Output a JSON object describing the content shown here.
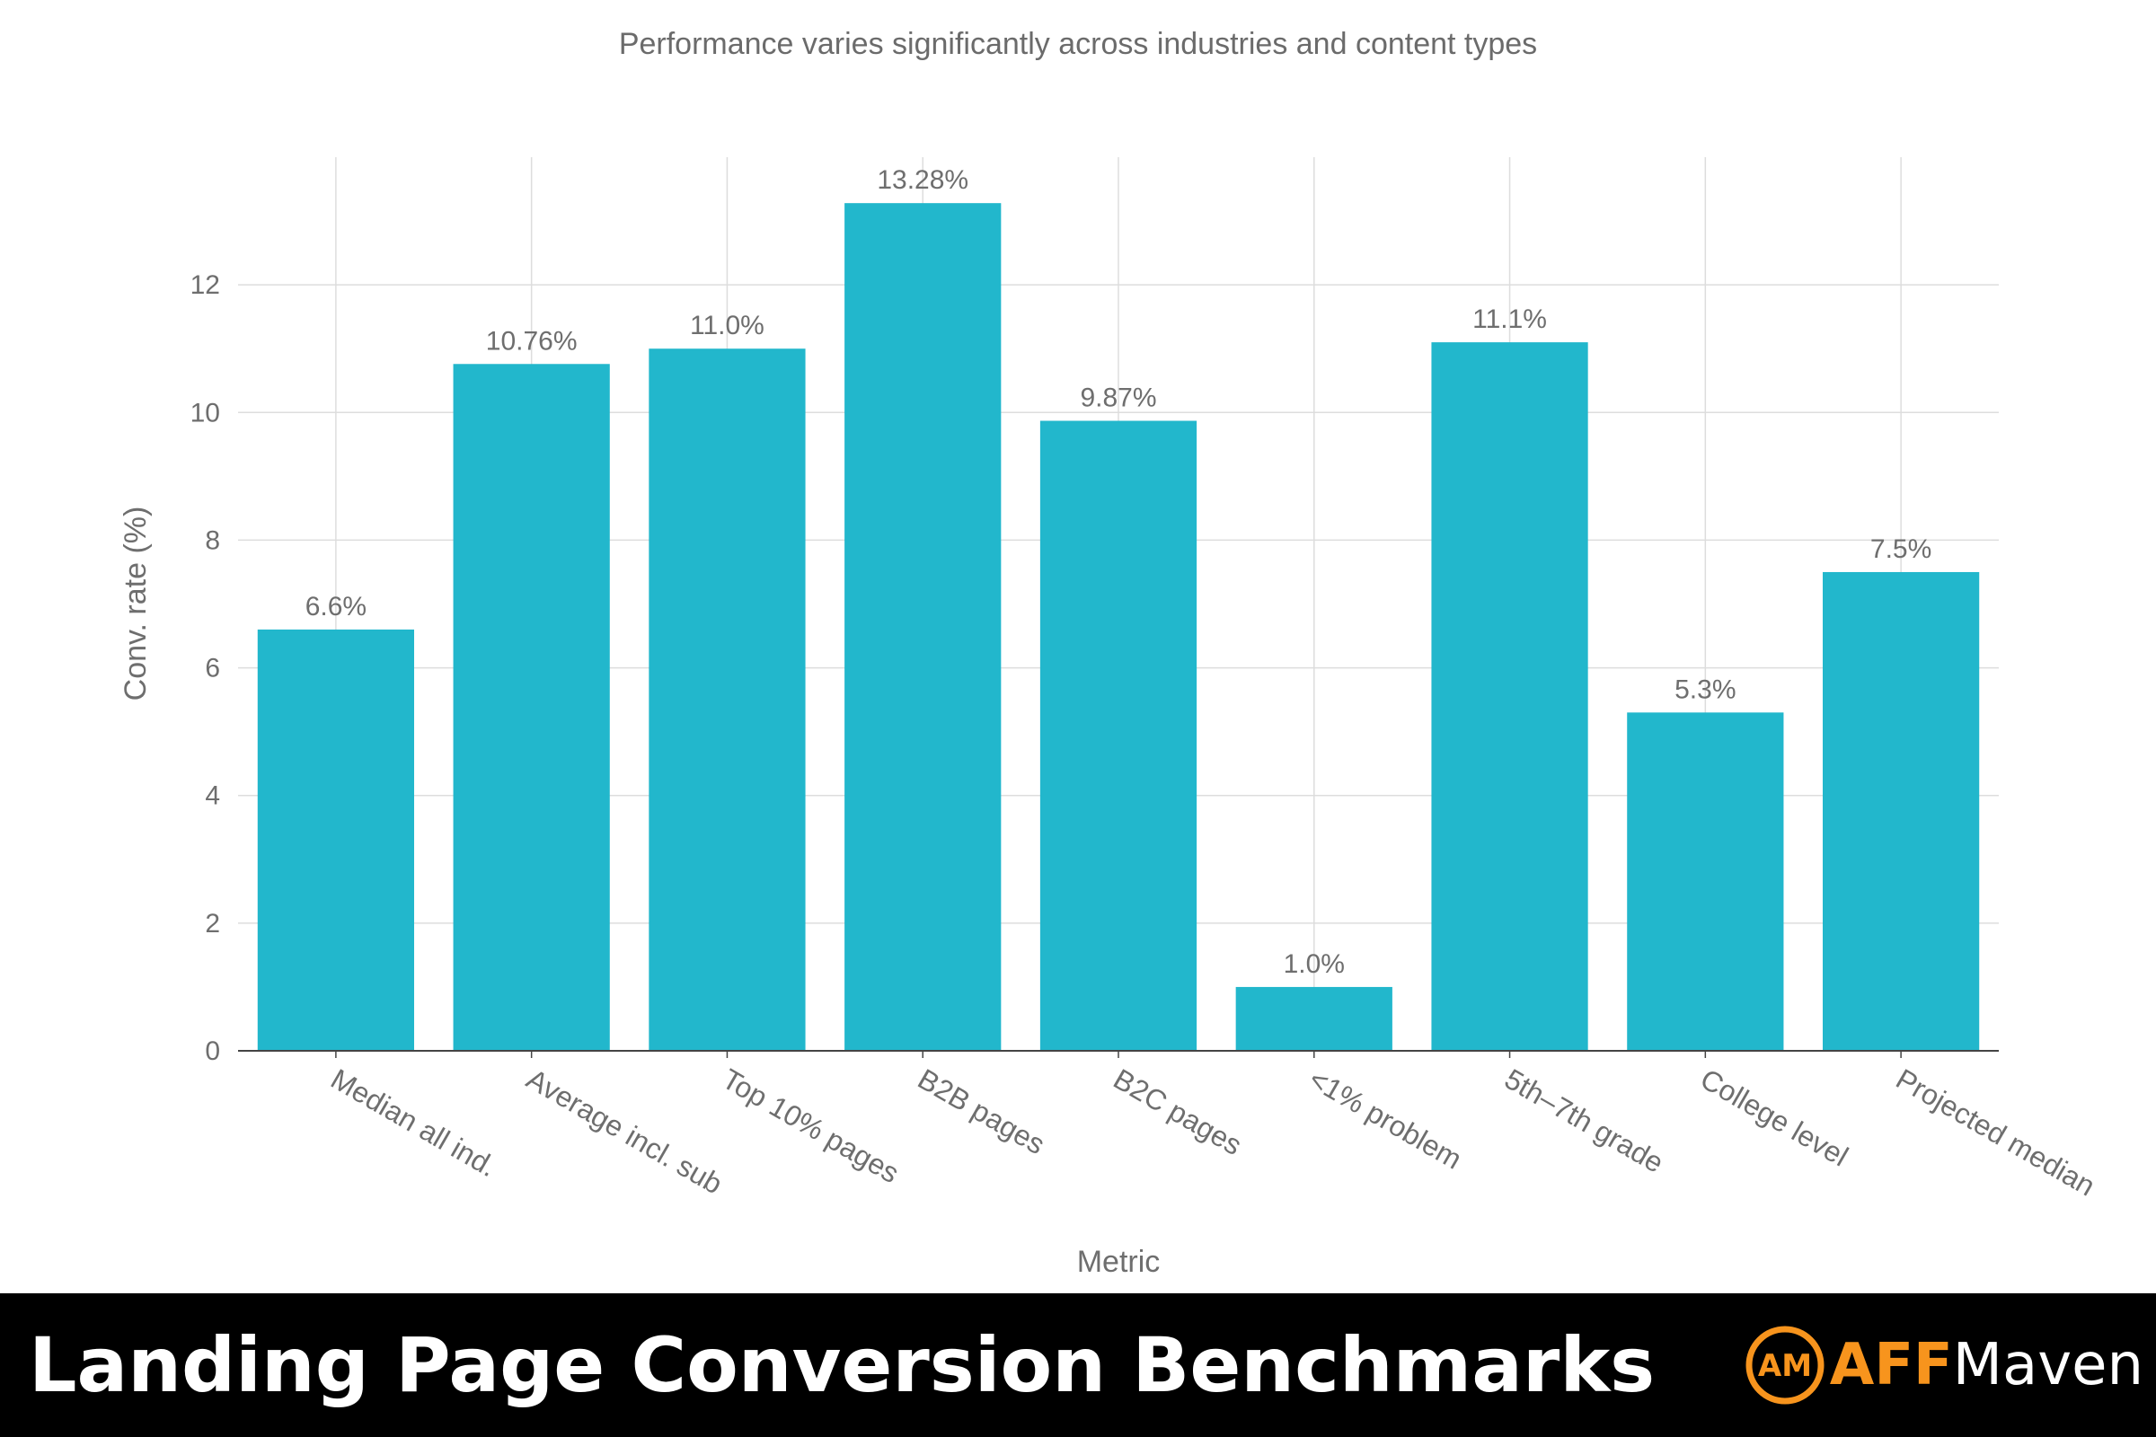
{
  "chart_data": {
    "type": "bar",
    "subtitle": "Performance varies significantly across industries and content types",
    "categories": [
      "Median all ind.",
      "Average incl. sub",
      "Top 10% pages",
      "B2B pages",
      "B2C pages",
      "<1% problem",
      "5th–7th grade",
      "College level",
      "Projected median"
    ],
    "values": [
      6.6,
      10.76,
      11.0,
      13.28,
      9.87,
      1.0,
      11.1,
      5.3,
      7.5
    ],
    "data_labels": [
      "6.6%",
      "10.76%",
      "11.0%",
      "13.28%",
      "9.87%",
      "1.0%",
      "11.1%",
      "5.3%",
      "7.5%"
    ],
    "xlabel": "Metric",
    "ylabel": "Conv. rate (%)",
    "ylim": [
      0,
      14
    ],
    "yticks": [
      0,
      2,
      4,
      6,
      8,
      10,
      12
    ],
    "grid": true,
    "bar_color": "#22b7cc"
  },
  "footer": {
    "title": "Landing Page Conversion Benchmarks",
    "brand_aff": "AFF",
    "brand_maven": "Maven",
    "brand_logo_letters": "AM",
    "background": "#000000",
    "accent": "#f7941d"
  }
}
